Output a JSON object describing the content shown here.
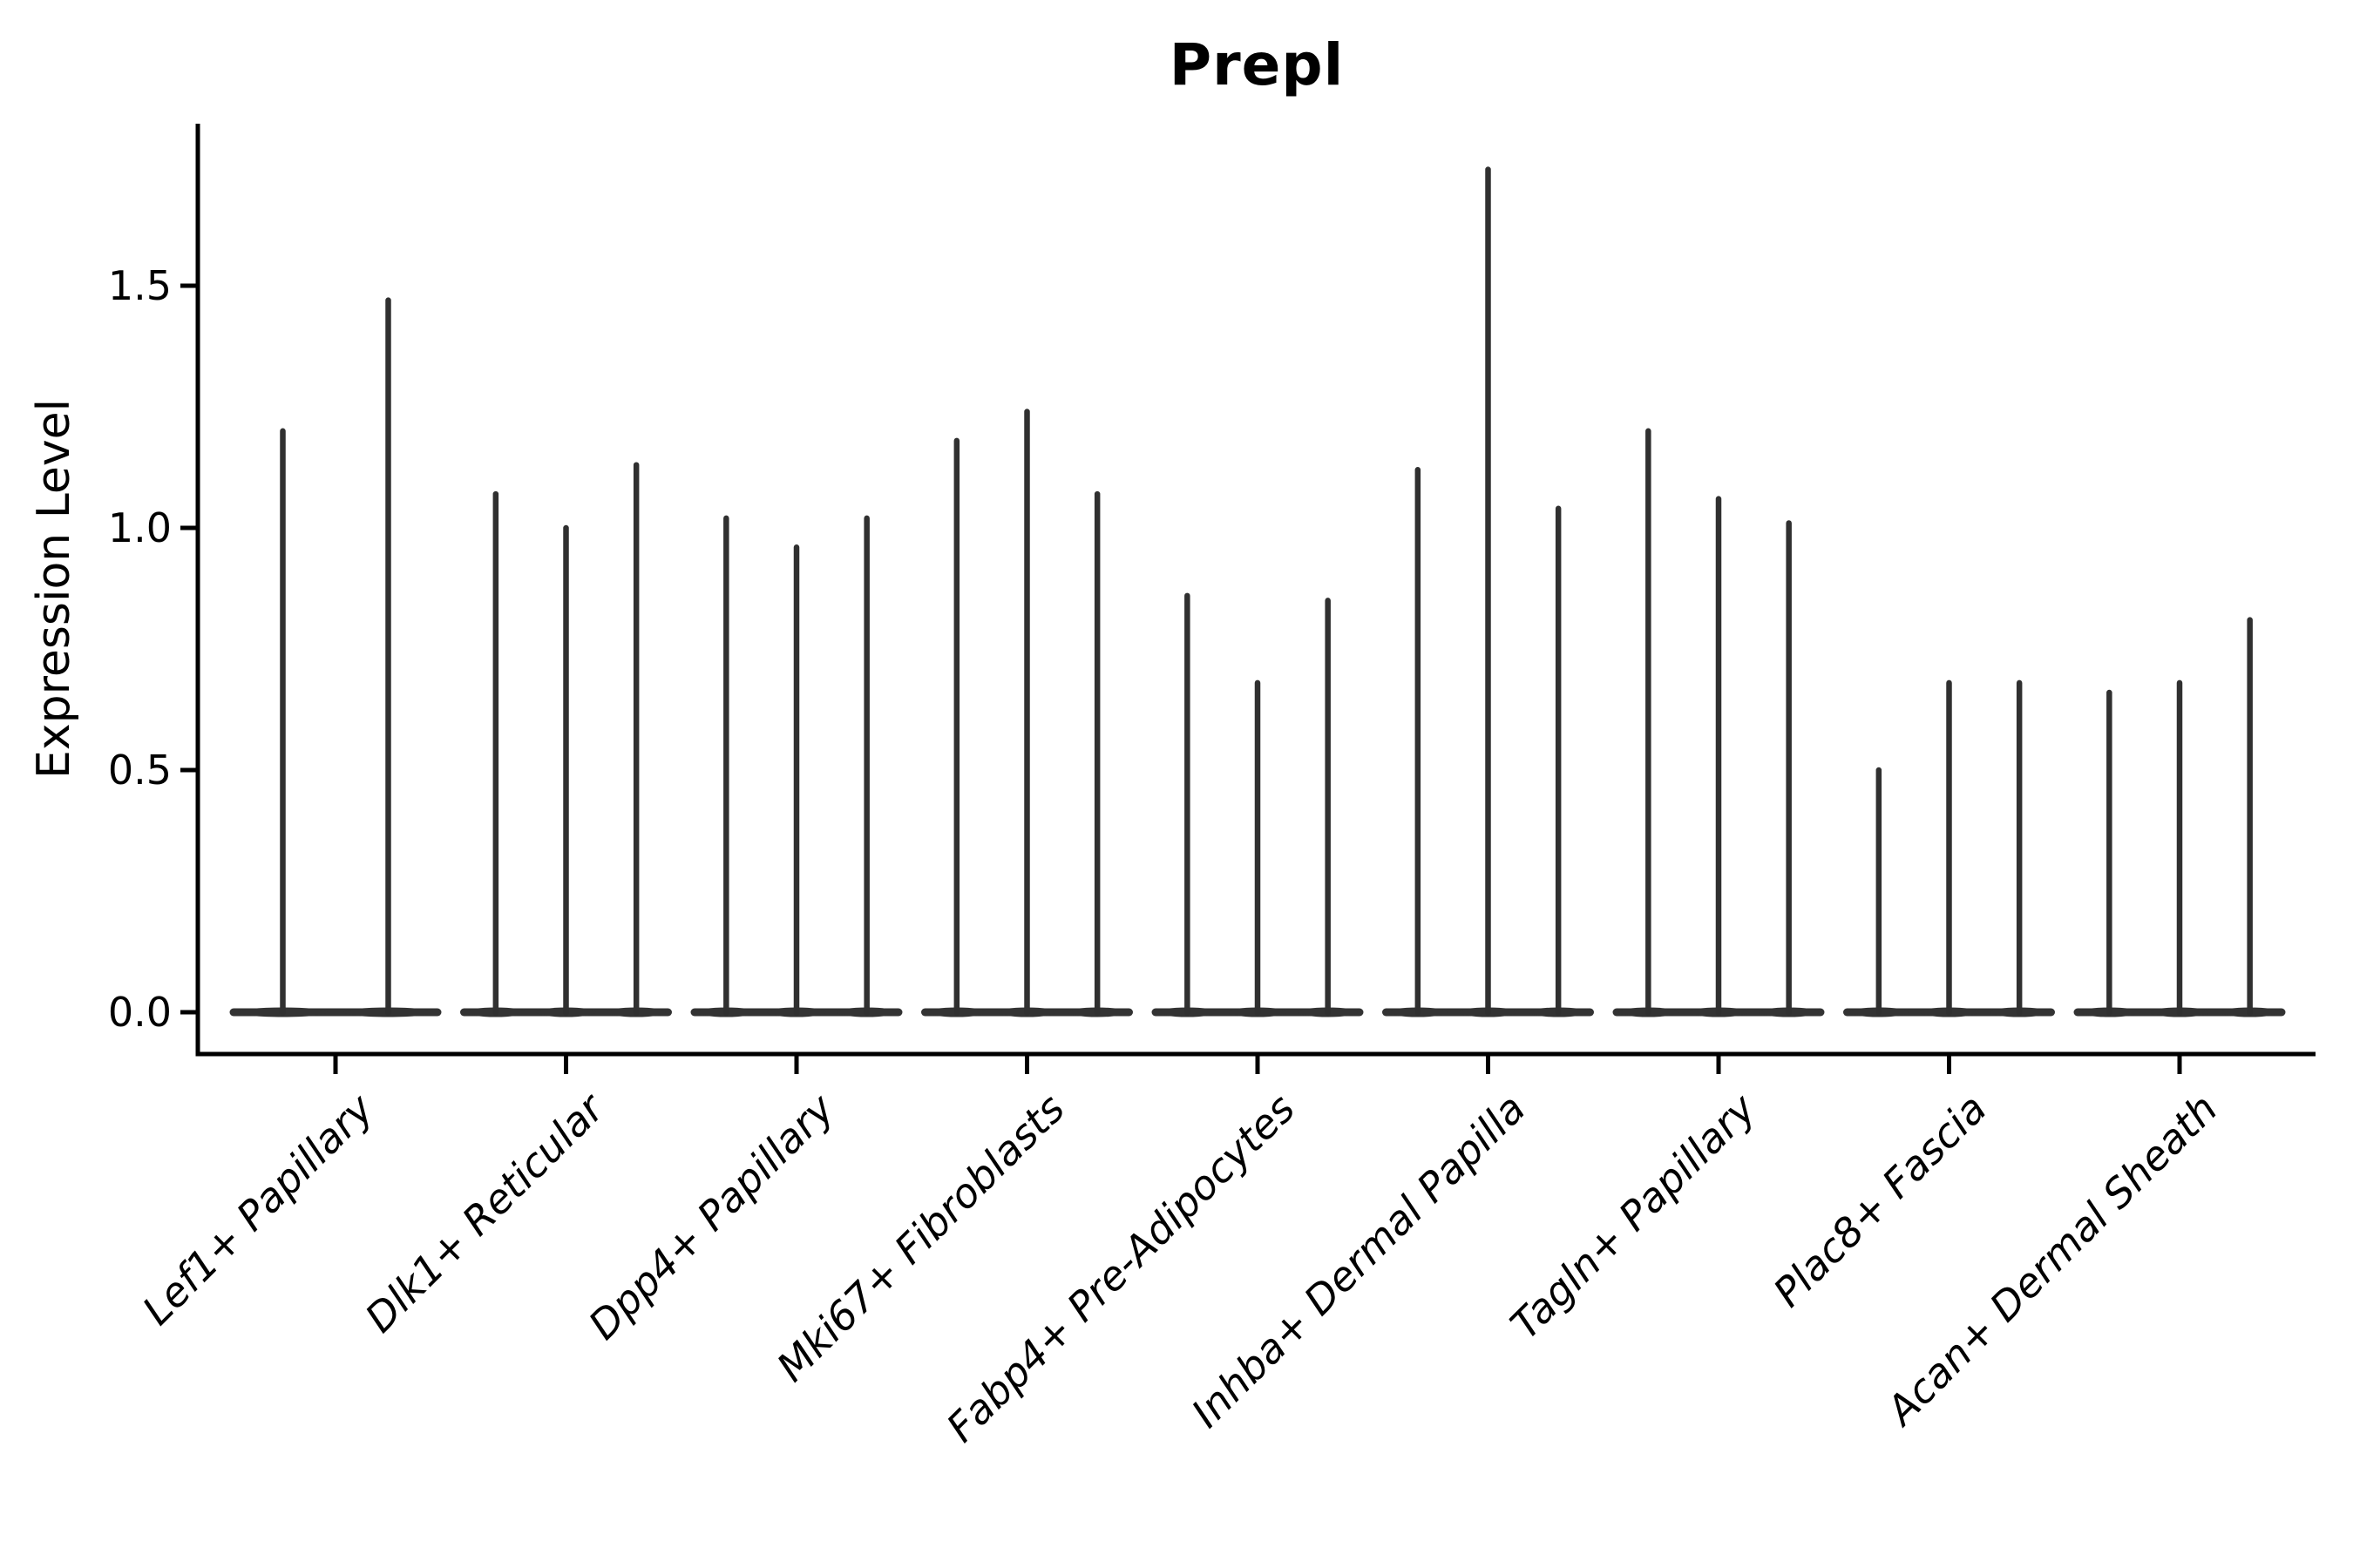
{
  "chart_data": {
    "type": "violin",
    "title": "Prepl",
    "xlabel": "",
    "ylabel": "Expression Level",
    "grid": false,
    "legend": "none",
    "ylim": [
      -0.09,
      1.84
    ],
    "ytick_values": [
      0.0,
      0.5,
      1.0,
      1.5
    ],
    "ytick_labels": [
      "0.0",
      "0.5",
      "1.0",
      "1.5"
    ],
    "categories": [
      "Lef1+ Papillary",
      "Dlk1+ Reticular",
      "Dpp4+ Papillary",
      "Mki67+ Fibroblasts",
      "Fabp4+ Pre-Adipocytes",
      "Inhba+ Dermal Papilla",
      "Tagln+ Papillary",
      "Plac8+ Fascia",
      "Acan+ Dermal Sheath"
    ],
    "violin_max_expression_per_category": [
      [
        1.2,
        1.47
      ],
      [
        1.07,
        1.0,
        1.13
      ],
      [
        1.02,
        0.96,
        1.02
      ],
      [
        1.18,
        1.24,
        1.07
      ],
      [
        0.86,
        0.68,
        0.85
      ],
      [
        1.12,
        1.74,
        1.04
      ],
      [
        1.2,
        1.06,
        1.01
      ],
      [
        0.5,
        0.68,
        0.68
      ],
      [
        0.66,
        0.68,
        0.81
      ]
    ],
    "violin_floor_value": 0.0,
    "colors": {
      "violin": "#303030",
      "violin_base": "#333333",
      "axis": "#000000",
      "text": "#000000",
      "background": "#ffffff"
    }
  }
}
